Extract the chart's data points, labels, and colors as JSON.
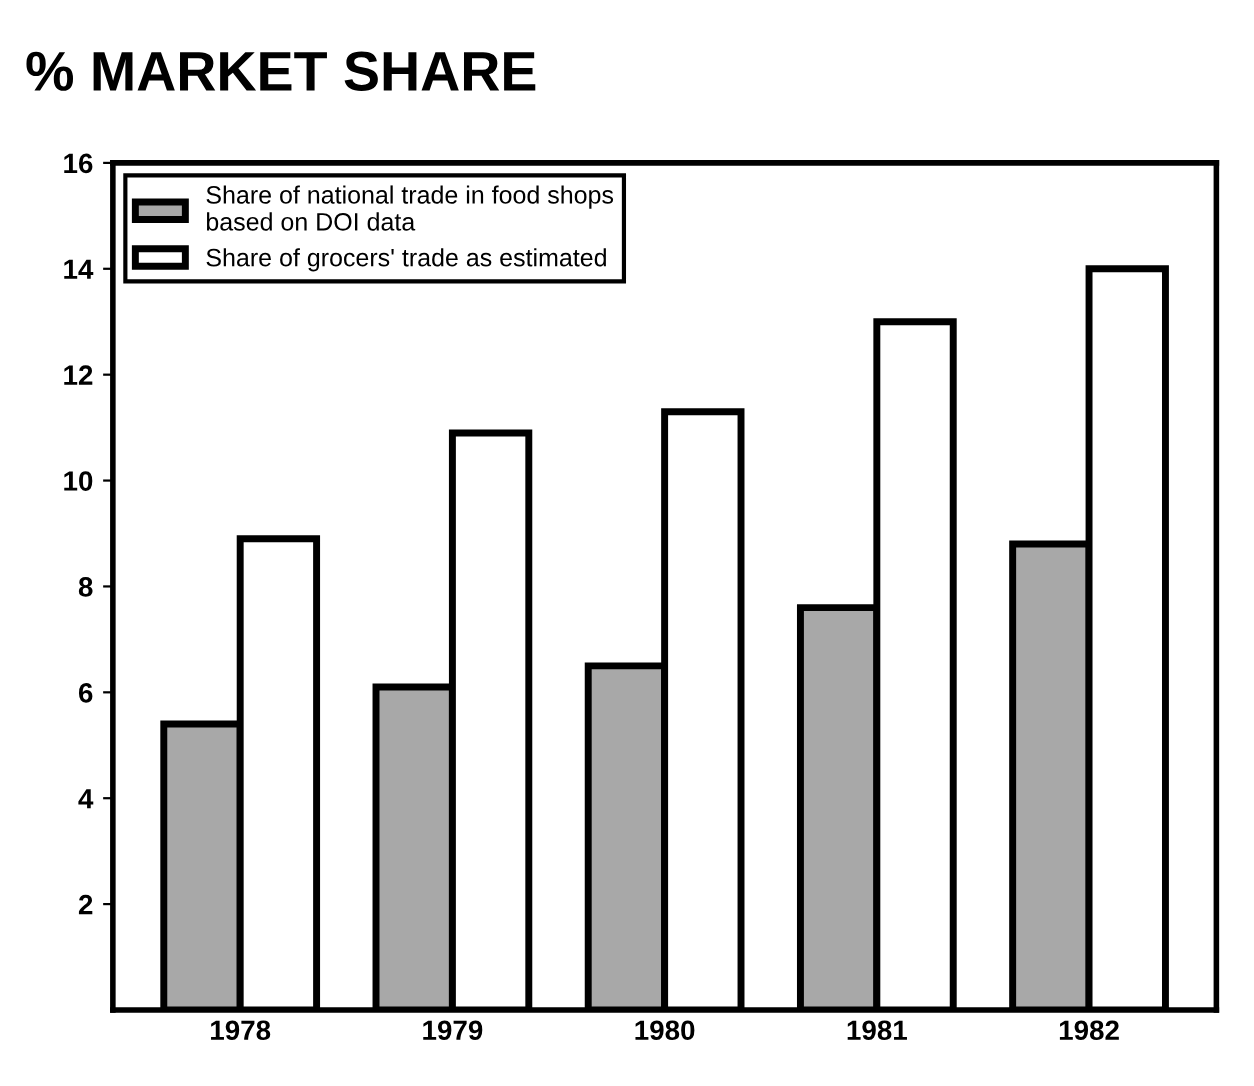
{
  "chart_data": {
    "type": "bar",
    "title": "% MARKET SHARE",
    "categories": [
      "1978",
      "1979",
      "1980",
      "1981",
      "1982"
    ],
    "series": [
      {
        "name": "Share of national trade in food shops\nbased on DOI data",
        "color": "#a8a8a8",
        "values": [
          5.4,
          6.1,
          6.5,
          7.6,
          8.8
        ]
      },
      {
        "name": "Share of grocers' trade as estimated",
        "color": "#ffffff",
        "values": [
          8.9,
          10.9,
          11.3,
          13.0,
          14.0
        ]
      }
    ],
    "ylim": [
      0,
      16
    ],
    "yticks": [
      2,
      4,
      6,
      8,
      10,
      12,
      14,
      16
    ],
    "grid": false,
    "legend": "top left"
  }
}
